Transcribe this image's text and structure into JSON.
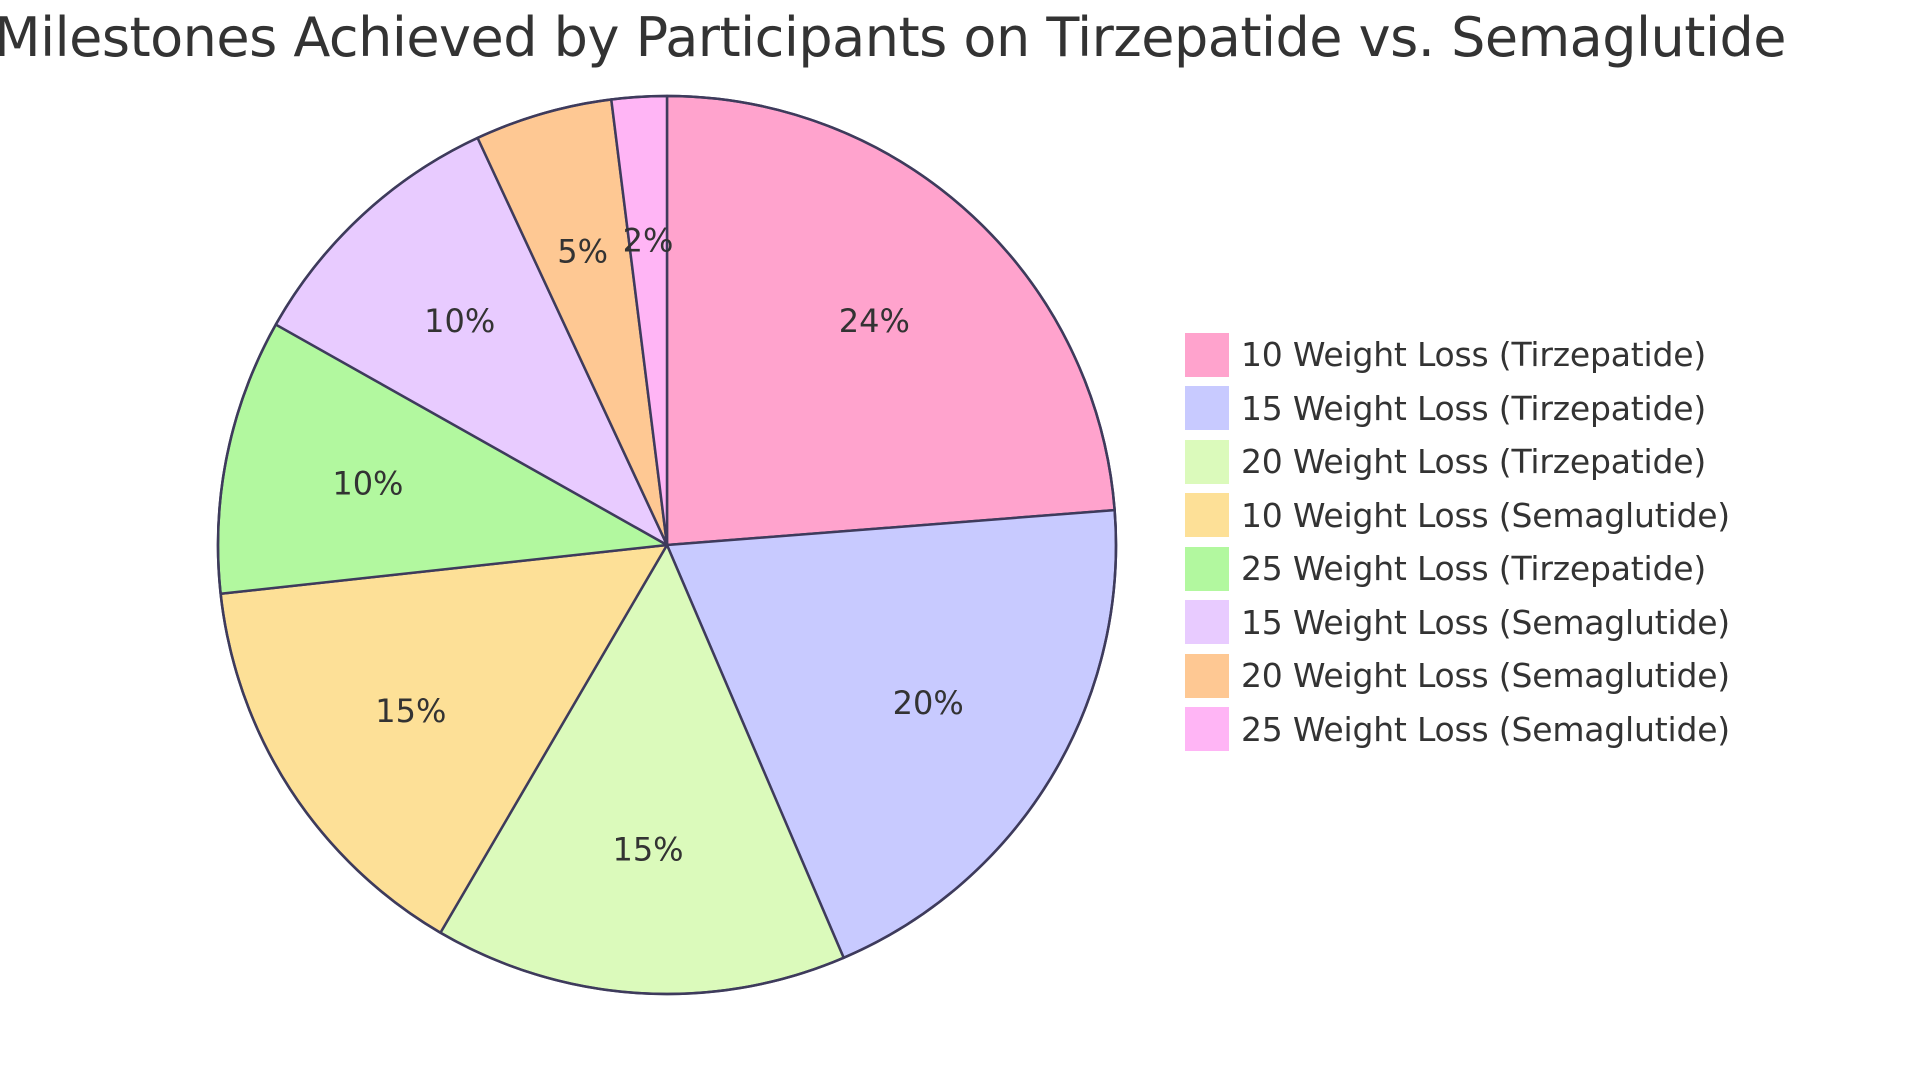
{
  "chart_data": {
    "type": "pie",
    "title": "Milestones Achieved by Participants on Tirzepatide vs. Semaglutide",
    "slices": [
      {
        "label": "10 Weight Loss (Tirzepatide)",
        "value": 24,
        "display": "24%",
        "color": "#ffa3cd"
      },
      {
        "label": "15 Weight Loss (Tirzepatide)",
        "value": 20,
        "display": "20%",
        "color": "#c8caff"
      },
      {
        "label": "20 Weight Loss (Tirzepatide)",
        "value": 15,
        "display": "15%",
        "color": "#dbfabb"
      },
      {
        "label": "10 Weight Loss (Semaglutide)",
        "value": 15,
        "display": "15%",
        "color": "#fde097"
      },
      {
        "label": "25 Weight Loss (Tirzepatide)",
        "value": 10,
        "display": "10%",
        "color": "#b2f89f"
      },
      {
        "label": "15 Weight Loss (Semaglutide)",
        "value": 10,
        "display": "10%",
        "color": "#e8cbff"
      },
      {
        "label": "20 Weight Loss (Semaglutide)",
        "value": 5,
        "display": "5%",
        "color": "#fec893"
      },
      {
        "label": "25 Weight Loss (Semaglutide)",
        "value": 2,
        "display": "2%",
        "color": "#ffb5f5"
      }
    ],
    "stroke_color": "#3e3b5c",
    "legend_position": "right"
  }
}
